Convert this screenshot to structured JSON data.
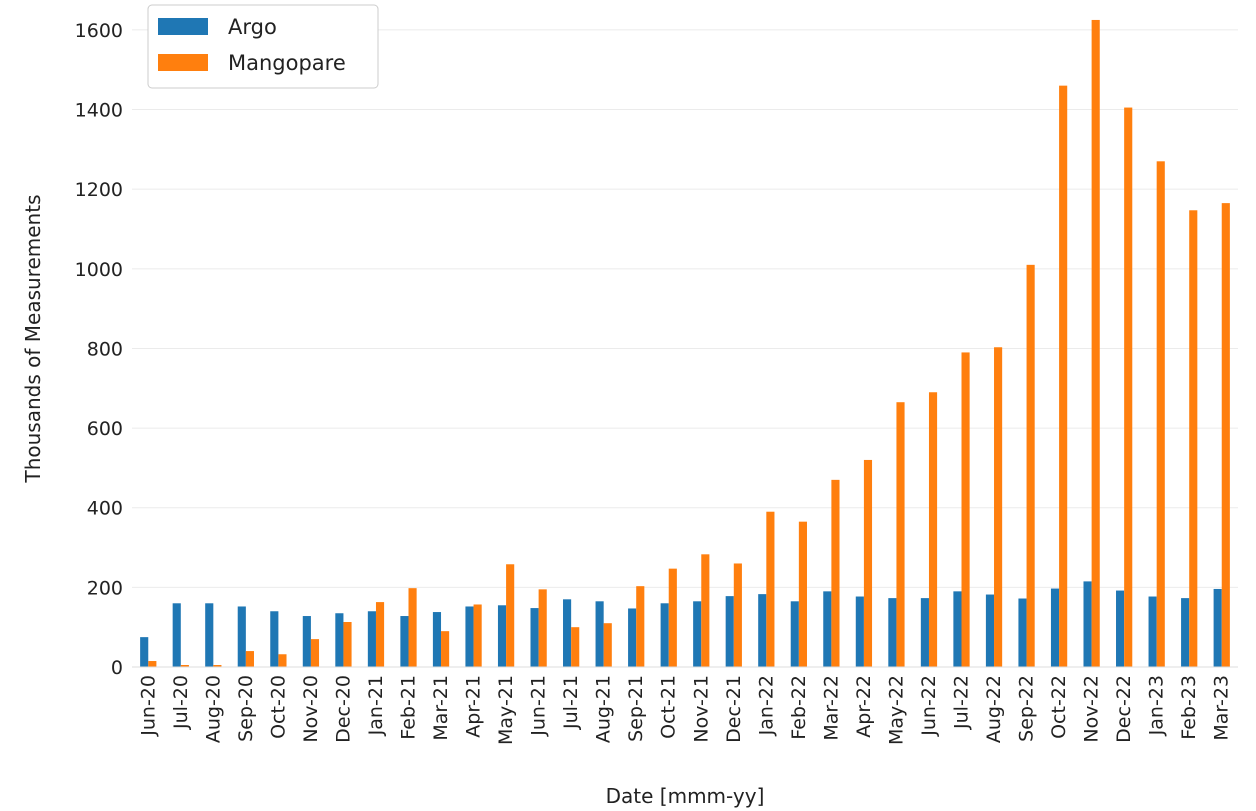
{
  "chart_data": {
    "type": "bar",
    "title": "",
    "xlabel": "Date [mmm-yy]",
    "ylabel": "Thousands of Measurements",
    "ylim": [
      0,
      1650
    ],
    "yticks": [
      0,
      200,
      400,
      600,
      800,
      1000,
      1200,
      1400,
      1600
    ],
    "grid": "horizontal",
    "legend_position": "top-left",
    "categories": [
      "Jun-20",
      "Jul-20",
      "Aug-20",
      "Sep-20",
      "Oct-20",
      "Nov-20",
      "Dec-20",
      "Jan-21",
      "Feb-21",
      "Mar-21",
      "Apr-21",
      "May-21",
      "Jun-21",
      "Jul-21",
      "Aug-21",
      "Sep-21",
      "Oct-21",
      "Nov-21",
      "Dec-21",
      "Jan-22",
      "Feb-22",
      "Mar-22",
      "Apr-22",
      "May-22",
      "Jun-22",
      "Jul-22",
      "Aug-22",
      "Sep-22",
      "Oct-22",
      "Nov-22",
      "Dec-22",
      "Jan-23",
      "Feb-23",
      "Mar-23"
    ],
    "series": [
      {
        "name": "Argo",
        "color": "#1f77b4",
        "values": [
          75,
          160,
          160,
          152,
          140,
          128,
          135,
          140,
          128,
          138,
          152,
          155,
          148,
          170,
          165,
          147,
          160,
          165,
          178,
          183,
          165,
          190,
          177,
          173,
          173,
          190,
          182,
          172,
          197,
          215,
          192,
          177,
          173,
          196
        ]
      },
      {
        "name": "Mangopare",
        "color": "#ff7f0e",
        "values": [
          15,
          5,
          5,
          40,
          32,
          70,
          113,
          163,
          198,
          90,
          157,
          258,
          195,
          100,
          110,
          203,
          247,
          283,
          260,
          390,
          365,
          470,
          520,
          665,
          690,
          790,
          803,
          1010,
          1460,
          1625,
          1405,
          1270,
          1147,
          1165
        ]
      }
    ]
  }
}
